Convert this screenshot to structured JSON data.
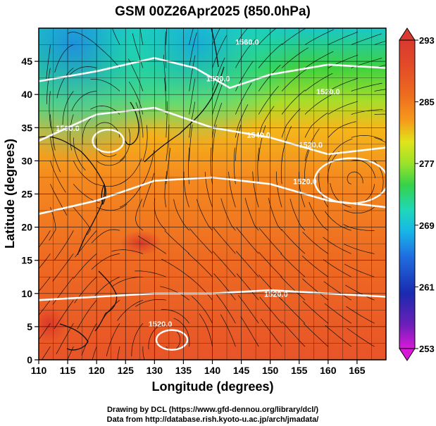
{
  "title": "GSM 00Z26Apr2025 (850.0hPa)",
  "xlabel": "Longitude (degrees)",
  "ylabel": "Latitude  (degrees)",
  "x_ticks": [
    "110",
    "115",
    "120",
    "125",
    "130",
    "135",
    "140",
    "145",
    "150",
    "155",
    "160",
    "165"
  ],
  "y_ticks": [
    "0",
    "5",
    "10",
    "15",
    "20",
    "25",
    "30",
    "35",
    "40",
    "45"
  ],
  "colorbar": {
    "labels": [
      "293",
      "285",
      "277",
      "269",
      "261",
      "253"
    ],
    "min": 253,
    "max": 293,
    "colors": [
      "#d81ad8",
      "#6a1fb8",
      "#1a2ab0",
      "#1f6fe0",
      "#17b6e8",
      "#1fd8b8",
      "#35d24a",
      "#9be22a",
      "#e0e41a",
      "#f5c21a",
      "#f59a1a",
      "#ee6d1f",
      "#e24a28",
      "#d83a30"
    ]
  },
  "contour_labels": [
    "1560.0",
    "1500.0",
    "1500.0",
    "1540.0",
    "1520.0",
    "1520.0",
    "1520.0",
    "1520.0",
    "1520.0"
  ],
  "credits": {
    "line1": "Drawing by DCL (https://www.gfd-dennou.org/library/dcl/)",
    "line2": "Data from http://database.rish.kyoto-u.ac.jp/arch/jmadata/"
  },
  "chart_data": {
    "type": "heatmap",
    "title": "GSM 00Z26Apr2025 (850.0hPa)",
    "xlabel": "Longitude (degrees)",
    "ylabel": "Latitude  (degrees)",
    "xlim": [
      110,
      170
    ],
    "ylim": [
      0,
      50
    ],
    "color_scale": {
      "min": 253,
      "max": 293,
      "labels": [
        293,
        285,
        277,
        269,
        261,
        253
      ]
    },
    "geopotential_height_contours": [
      {
        "value": 1500.0,
        "lon": [
          110,
          120,
          130,
          137,
          143,
          150,
          160,
          170
        ],
        "lat": [
          42.0,
          43.5,
          45.5,
          44.0,
          41.0,
          43.0,
          44.5,
          44.0
        ]
      },
      {
        "value": 1520.0,
        "lon": [
          110,
          120,
          130,
          140,
          150,
          160,
          170
        ],
        "lat": [
          33.0,
          37.0,
          38.0,
          35.0,
          33.5,
          31.0,
          32.0
        ]
      },
      {
        "value": 1540.0,
        "lon": [
          110,
          120,
          130,
          140,
          150,
          160,
          170
        ],
        "lat": [
          22.0,
          24.0,
          27.0,
          27.5,
          26.5,
          24.0,
          23.0
        ]
      },
      {
        "value": 1560.0,
        "lon": [
          110,
          120,
          130,
          140,
          150,
          160,
          170
        ],
        "lat": [
          9.0,
          9.5,
          10.0,
          10.0,
          10.5,
          10.0,
          9.5
        ]
      }
    ],
    "circulation_centers": [
      {
        "type": "low",
        "lon": 122,
        "lat": 33
      },
      {
        "type": "high",
        "lon": 164,
        "lat": 27
      },
      {
        "type": "low",
        "lon": 133,
        "lat": 3
      }
    ],
    "grid": true
  }
}
